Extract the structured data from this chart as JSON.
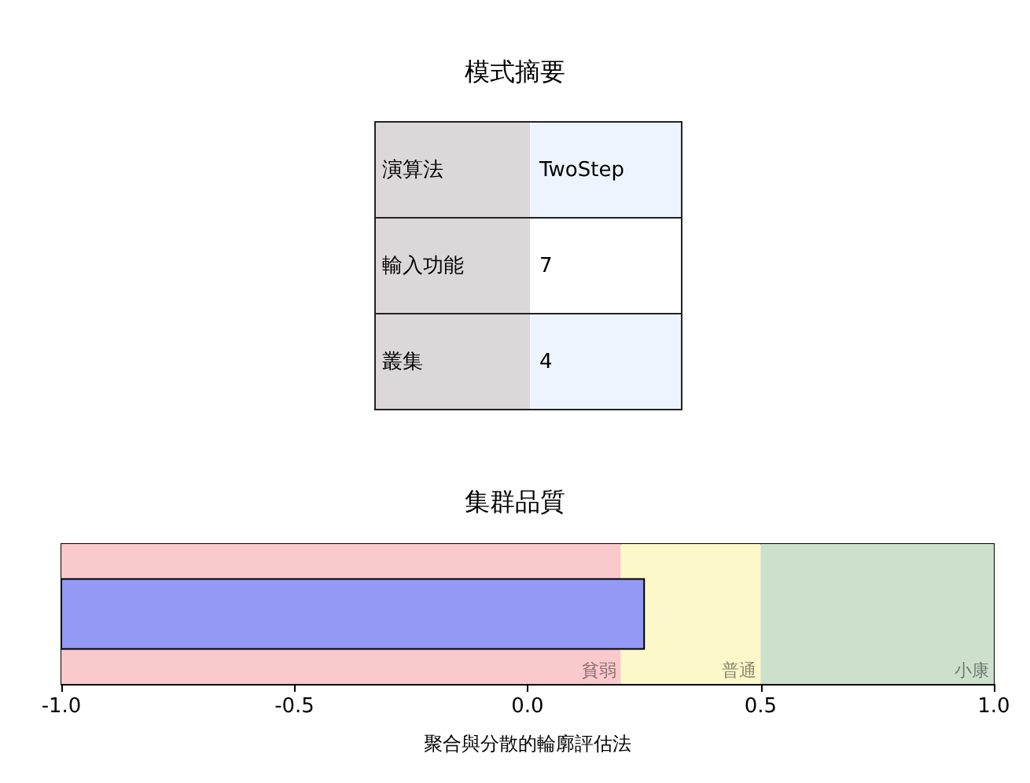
{
  "chart_data": [
    {
      "type": "other",
      "title": "模式摘要",
      "annotations": [
        "演算法",
        "TwoStep",
        "輸入功能",
        "7",
        "叢集",
        "4"
      ]
    },
    {
      "type": "bar",
      "orientation": "horizontal",
      "title": "集群品質",
      "xlabel": "聚合與分散的輪廓評估法",
      "categories": [
        null
      ],
      "base": [
        -1
      ],
      "values": [
        1.25
      ],
      "color": "#9399f5",
      "xlim": [
        -1,
        1
      ],
      "xticks": [
        {
          "value": -1,
          "label": "-1.0"
        },
        {
          "value": -0.5,
          "label": "-0.5"
        },
        {
          "value": 0,
          "label": "0.0"
        },
        {
          "value": 0.5,
          "label": "0.5"
        },
        {
          "value": 1,
          "label": "1.0"
        }
      ],
      "grid": false,
      "bands": [
        {
          "axis": "x",
          "from": -1,
          "to": 0.2,
          "label": "貧弱",
          "color": "#f9c9cc"
        },
        {
          "axis": "x",
          "from": 0.2,
          "to": 0.5,
          "label": "普通",
          "color": "#fcf8c9"
        },
        {
          "axis": "x",
          "from": 0.5,
          "to": 1,
          "label": "小康",
          "color": "#cce0cc"
        }
      ]
    }
  ]
}
